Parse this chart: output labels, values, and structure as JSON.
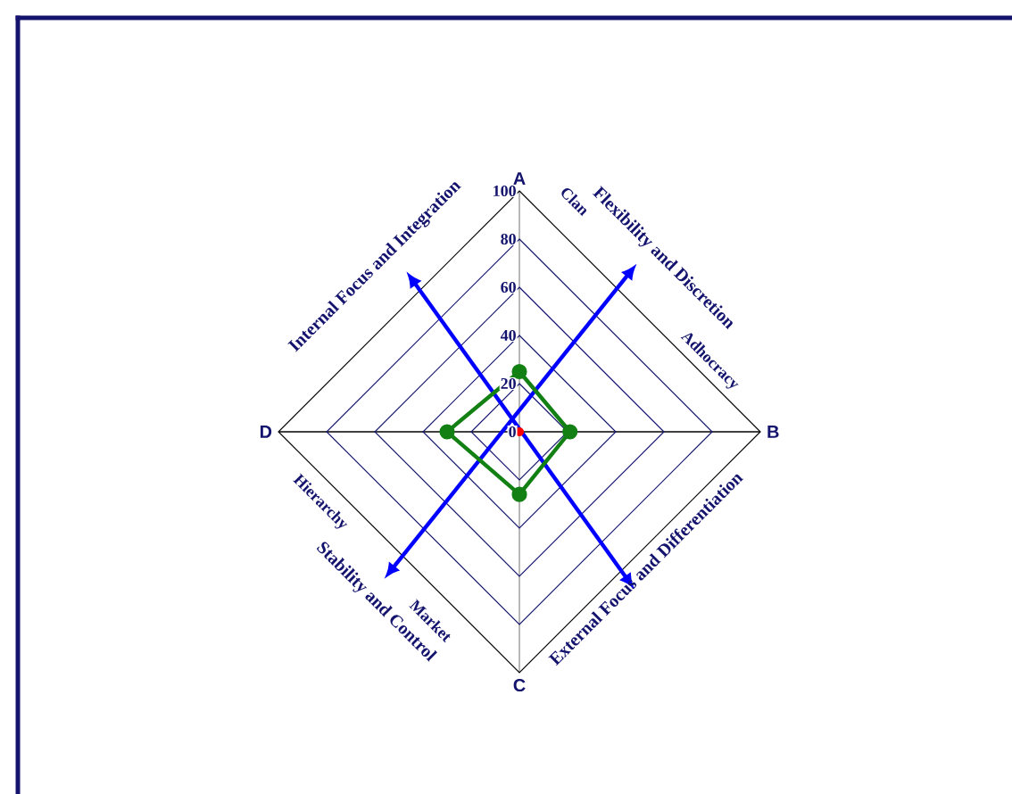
{
  "chart_data": {
    "type": "radar",
    "categories": [
      "A",
      "B",
      "C",
      "D"
    ],
    "series": [
      {
        "color": "#138013",
        "values": [
          25,
          21,
          26,
          30
        ]
      }
    ],
    "ylim": [
      0,
      100
    ],
    "yticks": [
      0,
      20,
      40,
      60,
      80,
      100
    ],
    "grid": true,
    "marker": "circle",
    "annotations": [
      "Internal Focus and Integration",
      "Flexibility and Discretion",
      "Clan",
      "Adhocracy",
      "External Focus and Differentiation",
      "Market",
      "Stability and Control",
      "Hierarchy"
    ]
  }
}
